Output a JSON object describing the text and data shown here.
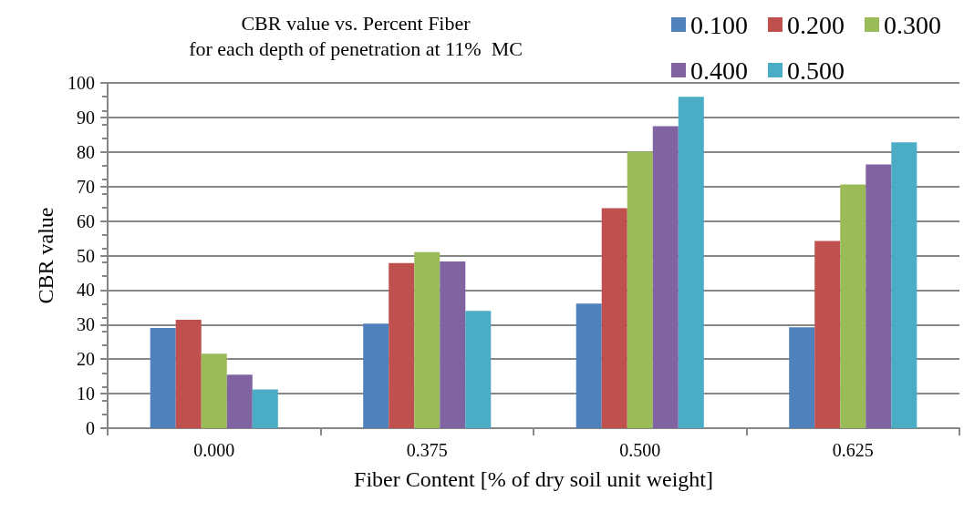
{
  "chart_data": {
    "type": "bar",
    "title": "CBR value vs. Percent Fiber\nfor each depth of penetration at 11%  MC",
    "xlabel": "Fiber Content [% of dry soil unit weight]",
    "ylabel": "CBR value",
    "categories": [
      "0.000",
      "0.375",
      "0.500",
      "0.625"
    ],
    "series": [
      {
        "name": "0.100",
        "color": "#4f81bd",
        "values": [
          29.0,
          30.3,
          36.1,
          29.2
        ]
      },
      {
        "name": "0.200",
        "color": "#c0504d",
        "values": [
          31.4,
          47.8,
          63.7,
          54.2
        ]
      },
      {
        "name": "0.300",
        "color": "#9bbb59",
        "values": [
          21.6,
          51.0,
          80.1,
          70.6
        ]
      },
      {
        "name": "0.400",
        "color": "#8064a2",
        "values": [
          15.5,
          48.3,
          87.5,
          76.4
        ]
      },
      {
        "name": "0.500",
        "color": "#4bacc6",
        "values": [
          11.2,
          34.0,
          96.0,
          82.8
        ]
      }
    ],
    "ylim": [
      0,
      100
    ],
    "yticks": [
      0,
      10,
      20,
      30,
      40,
      50,
      60,
      70,
      80,
      90,
      100
    ],
    "grid": "y",
    "legend": "top right"
  }
}
